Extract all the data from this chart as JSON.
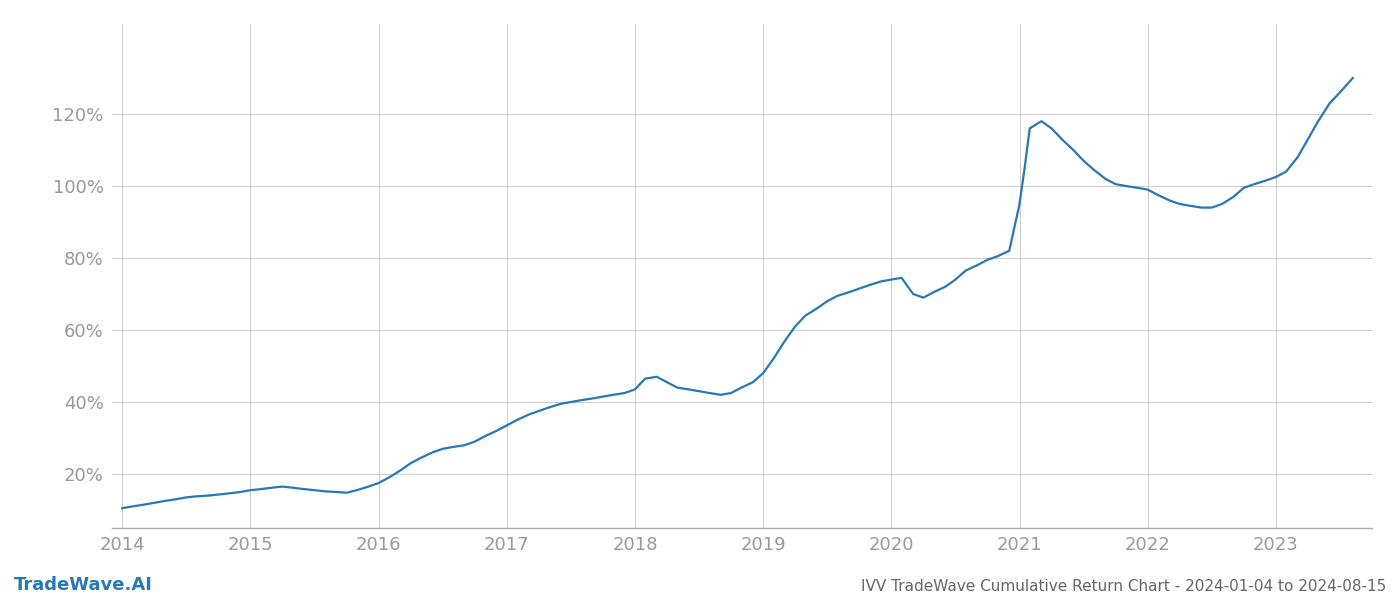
{
  "title": "IVV TradeWave Cumulative Return Chart - 2024-01-04 to 2024-08-15",
  "watermark": "TradeWave.AI",
  "line_color": "#2878b5",
  "background_color": "#ffffff",
  "grid_color": "#cccccc",
  "x_values": [
    2014.0,
    2014.08,
    2014.17,
    2014.25,
    2014.33,
    2014.42,
    2014.5,
    2014.58,
    2014.67,
    2014.75,
    2014.83,
    2014.92,
    2015.0,
    2015.08,
    2015.17,
    2015.25,
    2015.33,
    2015.42,
    2015.5,
    2015.58,
    2015.67,
    2015.75,
    2015.83,
    2015.92,
    2016.0,
    2016.08,
    2016.17,
    2016.25,
    2016.33,
    2016.42,
    2016.5,
    2016.58,
    2016.67,
    2016.75,
    2016.83,
    2016.92,
    2017.0,
    2017.08,
    2017.17,
    2017.25,
    2017.33,
    2017.42,
    2017.5,
    2017.58,
    2017.67,
    2017.75,
    2017.83,
    2017.92,
    2018.0,
    2018.08,
    2018.17,
    2018.25,
    2018.33,
    2018.42,
    2018.5,
    2018.58,
    2018.67,
    2018.75,
    2018.83,
    2018.92,
    2019.0,
    2019.08,
    2019.17,
    2019.25,
    2019.33,
    2019.42,
    2019.5,
    2019.58,
    2019.67,
    2019.75,
    2019.83,
    2019.92,
    2020.0,
    2020.08,
    2020.17,
    2020.25,
    2020.33,
    2020.42,
    2020.5,
    2020.58,
    2020.67,
    2020.75,
    2020.83,
    2020.92,
    2021.0,
    2021.04,
    2021.08,
    2021.17,
    2021.25,
    2021.33,
    2021.42,
    2021.5,
    2021.58,
    2021.67,
    2021.75,
    2021.83,
    2021.92,
    2022.0,
    2022.08,
    2022.17,
    2022.25,
    2022.33,
    2022.42,
    2022.5,
    2022.58,
    2022.67,
    2022.75,
    2022.83,
    2022.92,
    2023.0,
    2023.08,
    2023.17,
    2023.25,
    2023.33,
    2023.42,
    2023.5,
    2023.6
  ],
  "y_values": [
    10.5,
    11.0,
    11.5,
    12.0,
    12.5,
    13.0,
    13.5,
    13.8,
    14.0,
    14.3,
    14.6,
    15.0,
    15.5,
    15.8,
    16.2,
    16.5,
    16.2,
    15.8,
    15.5,
    15.2,
    15.0,
    14.8,
    15.5,
    16.5,
    17.5,
    19.0,
    21.0,
    23.0,
    24.5,
    26.0,
    27.0,
    27.5,
    28.0,
    29.0,
    30.5,
    32.0,
    33.5,
    35.0,
    36.5,
    37.5,
    38.5,
    39.5,
    40.0,
    40.5,
    41.0,
    41.5,
    42.0,
    42.5,
    43.5,
    46.5,
    47.0,
    45.5,
    44.0,
    43.5,
    43.0,
    42.5,
    42.0,
    42.5,
    44.0,
    45.5,
    48.0,
    52.0,
    57.0,
    61.0,
    64.0,
    66.0,
    68.0,
    69.5,
    70.5,
    71.5,
    72.5,
    73.5,
    74.0,
    74.5,
    70.0,
    69.0,
    70.5,
    72.0,
    74.0,
    76.5,
    78.0,
    79.5,
    80.5,
    82.0,
    95.0,
    105.0,
    116.0,
    118.0,
    116.0,
    113.0,
    110.0,
    107.0,
    104.5,
    102.0,
    100.5,
    100.0,
    99.5,
    99.0,
    97.5,
    96.0,
    95.0,
    94.5,
    94.0,
    94.0,
    95.0,
    97.0,
    99.5,
    100.5,
    101.5,
    102.5,
    104.0,
    108.0,
    113.0,
    118.0,
    123.0,
    126.0,
    130.0
  ],
  "xlim": [
    2013.92,
    2023.75
  ],
  "ylim": [
    5,
    145
  ],
  "xticks": [
    2014,
    2015,
    2016,
    2017,
    2018,
    2019,
    2020,
    2021,
    2022,
    2023
  ],
  "yticks": [
    20,
    40,
    60,
    80,
    100,
    120
  ],
  "line_width": 1.6,
  "title_fontsize": 11,
  "tick_fontsize": 13,
  "watermark_fontsize": 13,
  "title_color": "#666666",
  "tick_color": "#999999",
  "watermark_color": "#2878b5",
  "spine_color": "#aaaaaa"
}
